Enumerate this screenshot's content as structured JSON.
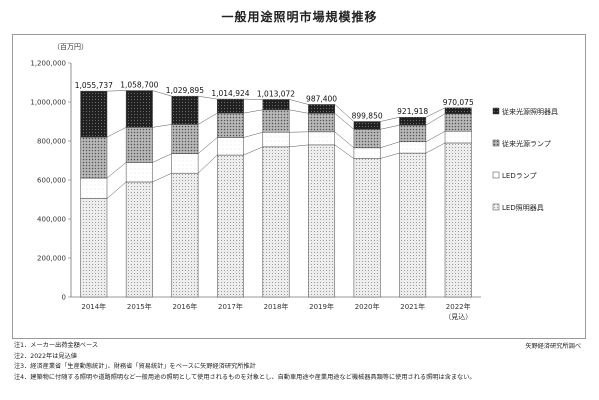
{
  "title": "一般用途照明市場規模推移",
  "chart_data": {
    "type": "bar",
    "stacked": true,
    "unit": "（百万円）",
    "categories": [
      "2014年",
      "2015年",
      "2016年",
      "2017年",
      "2018年",
      "2019年",
      "2020年",
      "2021年",
      "2022年"
    ],
    "category_sublabels": [
      "",
      "",
      "",
      "",
      "",
      "",
      "",
      "",
      "（見込）"
    ],
    "series": [
      {
        "name": "LED照明器具",
        "values": [
          505000,
          590000,
          635000,
          728000,
          770000,
          780000,
          710000,
          738000,
          790000
        ],
        "color": "#e6e6e6"
      },
      {
        "name": "LEDランプ",
        "values": [
          105000,
          100000,
          100000,
          90000,
          75000,
          67000,
          55000,
          58000,
          60000
        ],
        "color": "#ffffff"
      },
      {
        "name": "従来光源ランプ",
        "values": [
          210000,
          180000,
          150000,
          125000,
          115000,
          95000,
          95000,
          85000,
          90000
        ],
        "color": "#9a9a9a"
      },
      {
        "name": "従来光源照明器具",
        "values": [
          235737,
          188700,
          144895,
          71924,
          53072,
          45400,
          39850,
          40918,
          30075
        ],
        "color": "#1e1e1e"
      }
    ],
    "totals": [
      "1,055,737",
      "1,058,700",
      "1,029,895",
      "1,014,924",
      "1,013,072",
      "987,400",
      "899,850",
      "921,918",
      "970,075"
    ],
    "legend_order": [
      "従来光源照明器具",
      "従来光源ランプ",
      "LEDランプ",
      "LED照明器具"
    ],
    "legend_position": "right",
    "ylim": [
      0,
      1200000
    ],
    "yticks": [
      "0",
      "200,000",
      "400,000",
      "600,000",
      "800,000",
      "1,000,000",
      "1,200,000"
    ],
    "grid": false
  },
  "notes": [
    "注1．メーカー出荷金額ベース",
    "注2．2022年は見込値",
    "注3．経済産業省「生産動態統計」、財務省「貿易統計」をベースに矢野経済研究所推計",
    "注4．建築物に付随する照明や道路照明など一般用途の照明として使用されるものを対象とし、自動車用途や産業用途など機械器具類等に使用される照明は含まない。"
  ],
  "source": "矢野経済研究所調べ"
}
